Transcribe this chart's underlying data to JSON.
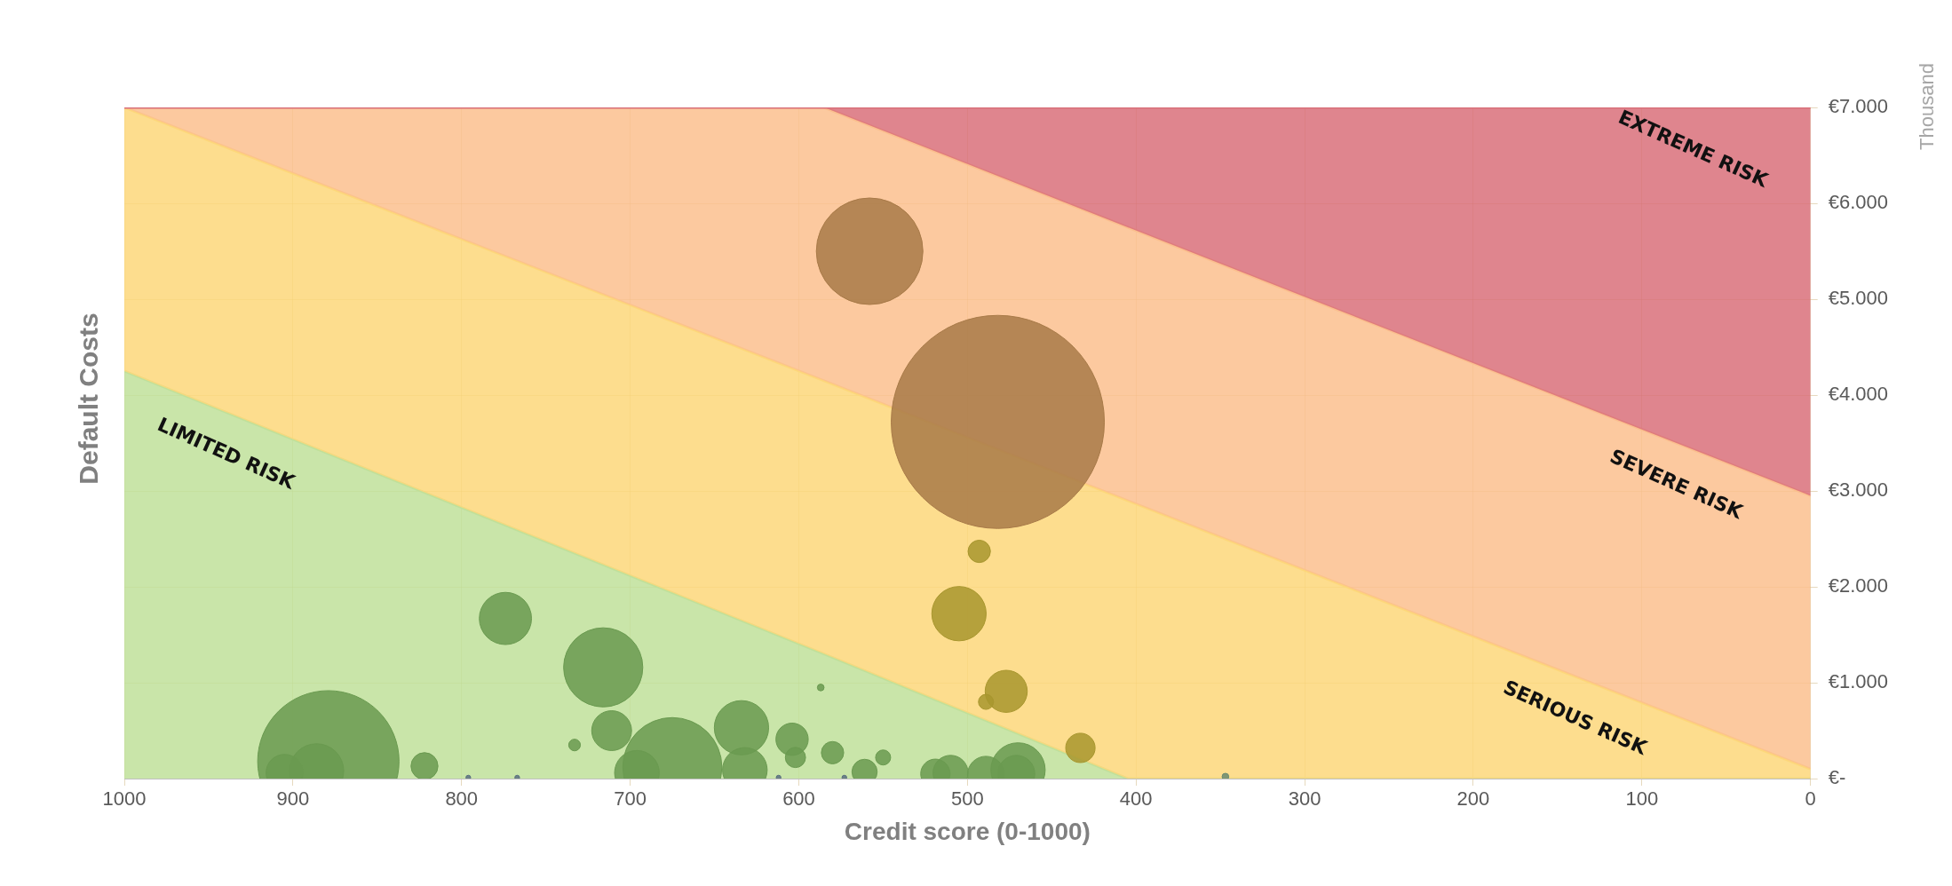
{
  "chart_data": {
    "type": "bubble",
    "xlabel": "Credit score (0-1000)",
    "ylabel": "Default Costs",
    "xlim": [
      1000,
      0
    ],
    "xticks": [
      1000,
      900,
      800,
      700,
      600,
      500,
      400,
      300,
      200,
      100,
      0
    ],
    "ylim": [
      0,
      7000
    ],
    "yticks": [
      {
        "value": 0,
        "label": "€-"
      },
      {
        "value": 1000,
        "label": "€1.000"
      },
      {
        "value": 2000,
        "label": "€2.000"
      },
      {
        "value": 3000,
        "label": "€3.000"
      },
      {
        "value": 4000,
        "label": "€4.000"
      },
      {
        "value": 5000,
        "label": "€5.000"
      },
      {
        "value": 6000,
        "label": "€6.000"
      },
      {
        "value": 7000,
        "label": "€7.000"
      }
    ],
    "grid": true,
    "legend": false,
    "stacked": true,
    "series": [
      {
        "type": "area",
        "name": "LIMITED RISK",
        "color": "#c0e09a",
        "x": [
          1000,
          585,
          405,
          0
        ],
        "values": [
          4250,
          1300,
          0,
          0
        ]
      },
      {
        "type": "area",
        "name": "SERIOUS RISK",
        "color": "#fdd77a",
        "x": [
          1000,
          585,
          405,
          0
        ],
        "values": [
          2750,
          2850,
          2900,
          100
        ]
      },
      {
        "type": "area",
        "name": "SEVERE RISK",
        "color": "#fbbf8e",
        "x": [
          1000,
          585,
          405,
          0
        ],
        "values": [
          0,
          2850,
          2850,
          2850
        ]
      },
      {
        "type": "area",
        "name": "EXTREME RISK",
        "color": "#d9707a",
        "x": [
          1000,
          585,
          405,
          0
        ],
        "values": [
          0,
          0,
          1250,
          4050
        ]
      },
      {
        "x": [
          558,
          482,
          493,
          505,
          477,
          489,
          433,
          347,
          587,
          774,
          716,
          711,
          733,
          634,
          604,
          602,
          580,
          550,
          822,
          879,
          886,
          905,
          675,
          696,
          632,
          561,
          519,
          510,
          489,
          470,
          471,
          796,
          767,
          612,
          573
        ],
        "values": [
          5500,
          3720,
          2370,
          1720,
          910,
          800,
          320,
          20,
          950,
          1670,
          1160,
          500,
          350,
          530,
          410,
          220,
          270,
          220,
          130,
          180,
          80,
          60,
          120,
          60,
          90,
          70,
          50,
          60,
          40,
          90,
          50,
          10,
          10,
          10,
          10
        ],
        "sizes": [
          0.25,
          1,
          0.011,
          0.065,
          0.039,
          0.005,
          0.019,
          0.001,
          0.001,
          0.06,
          0.138,
          0.035,
          0.003,
          0.065,
          0.023,
          0.009,
          0.011,
          0.005,
          0.016,
          0.44,
          0.065,
          0.03,
          0.216,
          0.044,
          0.044,
          0.014,
          0.019,
          0.027,
          0.03,
          0.065,
          0.03,
          0.0005,
          0.0005,
          0.0005,
          0.0005
        ],
        "colors": [
          "#a87a48",
          "#a87a48",
          "#a8962e",
          "#a8962e",
          "#a8962e",
          "#a8962e",
          "#a8962e",
          "#6a8a70",
          "#6a9a50",
          "#6a9a50",
          "#6a9a50",
          "#6a9a50",
          "#6a9a50",
          "#6a9a50",
          "#6a9a50",
          "#6a9a50",
          "#6a9a50",
          "#6a9a50",
          "#6a9a50",
          "#6a9a50",
          "#6a9a50",
          "#6a9a50",
          "#6a9a50",
          "#6a9a50",
          "#6a9a50",
          "#6a9a50",
          "#6a9a50",
          "#6a9a50",
          "#6a9a50",
          "#6a9a50",
          "#6a9a50",
          "#5a7080",
          "#5a7080",
          "#5a7080",
          "#5a7080"
        ]
      }
    ],
    "annotations": [
      "Thousand"
    ]
  }
}
